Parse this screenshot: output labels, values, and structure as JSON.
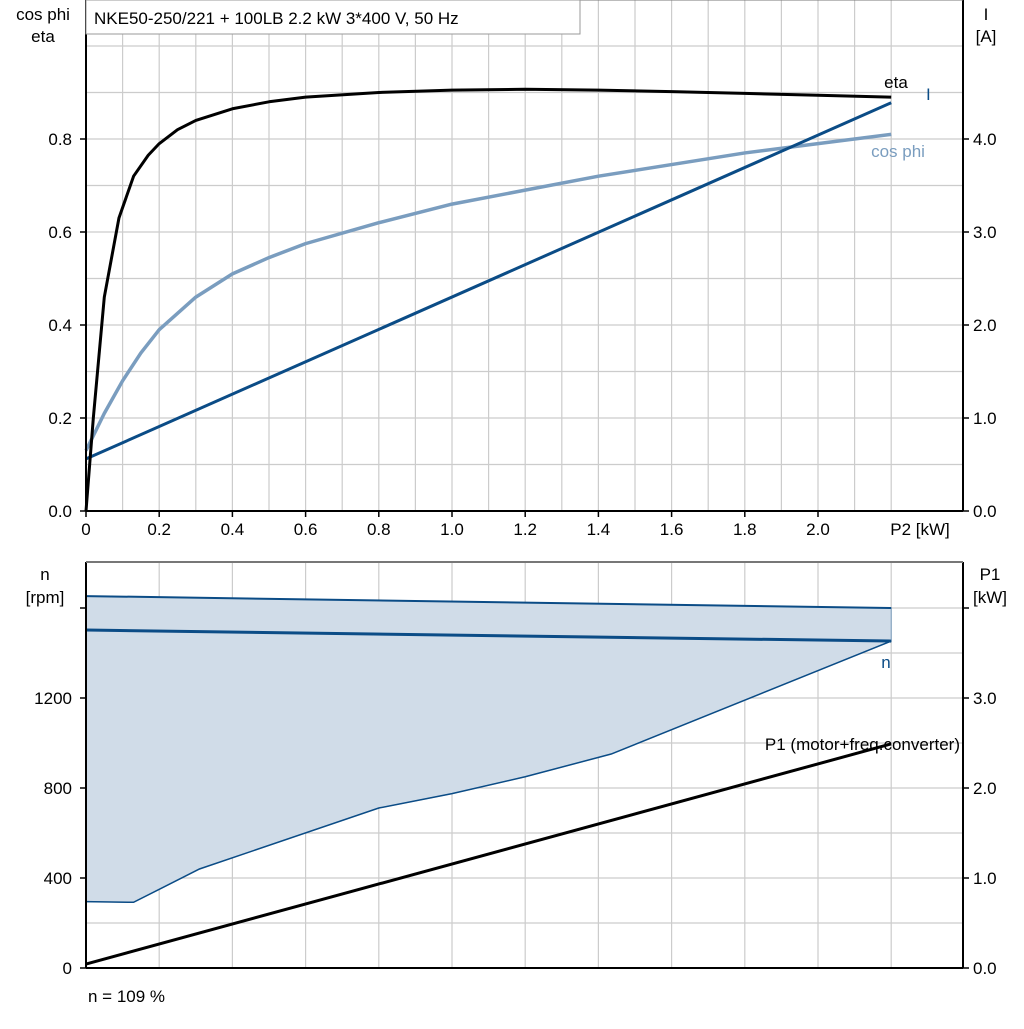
{
  "colors": {
    "eta": "#000000",
    "current": "#0b4c86",
    "cosphi": "#7a9dbf",
    "speed": "#0b4c86",
    "band_fill": "#d0dce8",
    "p1": "#000000",
    "grid": "#cccccc"
  },
  "chart_data": [
    {
      "type": "line",
      "title": "NKE50-250/221 + 100LB   2.2 kW   3*400 V, 50 Hz",
      "xlabel": "P2 [kW]",
      "ylabel_left": [
        "cos phi",
        "eta"
      ],
      "ylabel_right": [
        "I",
        "[A]"
      ],
      "xlim": [
        0,
        2.2
      ],
      "ylim_left": [
        0,
        1.1
      ],
      "ylim_right": [
        0,
        5.5
      ],
      "grid": true,
      "x_ticks": [
        "0",
        "0.2",
        "0.4",
        "0.6",
        "0.8",
        "1.0",
        "1.2",
        "1.4",
        "1.6",
        "1.8",
        "2.0"
      ],
      "y_ticks_left": [
        "0.0",
        "0.2",
        "0.4",
        "0.6",
        "0.8"
      ],
      "y_ticks_right": [
        "0.0",
        "1.0",
        "2.0",
        "3.0",
        "4.0"
      ],
      "series": [
        {
          "name": "eta",
          "axis": "left",
          "x": [
            0,
            0.02,
            0.05,
            0.09,
            0.13,
            0.17,
            0.2,
            0.25,
            0.3,
            0.4,
            0.5,
            0.6,
            0.8,
            1.0,
            1.2,
            1.4,
            1.6,
            1.8,
            2.0,
            2.2
          ],
          "y": [
            0,
            0.2,
            0.46,
            0.63,
            0.72,
            0.765,
            0.79,
            0.82,
            0.84,
            0.865,
            0.88,
            0.89,
            0.9,
            0.905,
            0.907,
            0.905,
            0.902,
            0.898,
            0.894,
            0.89
          ]
        },
        {
          "name": "cos phi",
          "axis": "left",
          "x": [
            0,
            0.05,
            0.1,
            0.15,
            0.2,
            0.3,
            0.4,
            0.5,
            0.6,
            0.8,
            1.0,
            1.2,
            1.4,
            1.6,
            1.8,
            2.0,
            2.2
          ],
          "y": [
            0.13,
            0.21,
            0.28,
            0.34,
            0.39,
            0.46,
            0.51,
            0.545,
            0.575,
            0.62,
            0.66,
            0.69,
            0.72,
            0.745,
            0.77,
            0.79,
            0.81
          ]
        },
        {
          "name": "I",
          "axis": "right",
          "x": [
            0,
            2.2
          ],
          "y": [
            0.56,
            4.39
          ]
        }
      ]
    },
    {
      "type": "area",
      "xlim": [
        0,
        2.2
      ],
      "ylabel_left": [
        "n",
        "[rpm]"
      ],
      "ylabel_right": [
        "P1",
        "[kW]"
      ],
      "ylim_left": [
        0,
        1800
      ],
      "ylim_right": [
        0,
        4.5
      ],
      "grid": true,
      "y_ticks_left": [
        "0",
        "400",
        "800",
        "1200"
      ],
      "y_ticks_right": [
        "0.0",
        "1.0",
        "2.0",
        "3.0"
      ],
      "series": [
        {
          "name": "n band upper",
          "axis": "left",
          "x": [
            0,
            2.2
          ],
          "y": [
            1653,
            1600
          ]
        },
        {
          "name": "n",
          "axis": "left",
          "x": [
            0,
            2.2
          ],
          "y": [
            1502,
            1453
          ]
        },
        {
          "name": "n band lower",
          "axis": "left",
          "x": [
            0,
            0.13,
            0.31,
            0.8,
            1.0,
            1.2,
            1.435,
            2.2
          ],
          "y": [
            295,
            292,
            440,
            711,
            775,
            850,
            951,
            1453
          ]
        },
        {
          "name": "P1 (motor+freq.converter)",
          "axis": "right",
          "x": [
            0,
            2.2
          ],
          "y": [
            0.044,
            2.49
          ]
        }
      ],
      "footnote": "n = 109 %"
    }
  ]
}
